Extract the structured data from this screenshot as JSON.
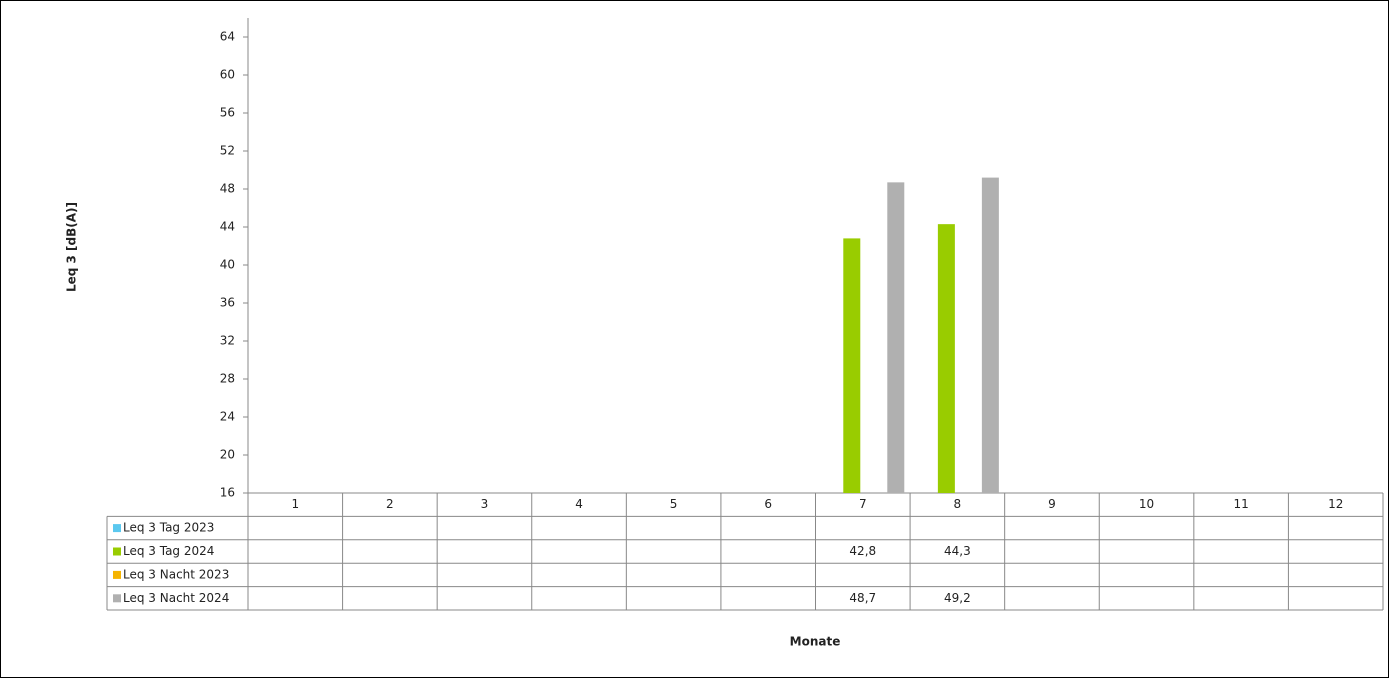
{
  "chart_data": {
    "type": "bar",
    "y_label": "Leq 3 [dB(A)]",
    "x_label": "Monate",
    "categories": [
      "1",
      "2",
      "3",
      "4",
      "5",
      "6",
      "7",
      "8",
      "9",
      "10",
      "11",
      "12"
    ],
    "series": [
      {
        "name": "Leq 3 Tag 2023",
        "color": "#5bc8ef",
        "values": [
          null,
          null,
          null,
          null,
          null,
          null,
          null,
          null,
          null,
          null,
          null,
          null
        ]
      },
      {
        "name": "Leq 3 Tag 2024",
        "color": "#99cc00",
        "values": [
          null,
          null,
          null,
          null,
          null,
          null,
          42.8,
          44.3,
          null,
          null,
          null,
          null
        ],
        "value_labels": [
          null,
          null,
          null,
          null,
          null,
          null,
          "42,8",
          "44,3",
          null,
          null,
          null,
          null
        ]
      },
      {
        "name": "Leq 3 Nacht 2023",
        "color": "#f5b400",
        "values": [
          null,
          null,
          null,
          null,
          null,
          null,
          null,
          null,
          null,
          null,
          null,
          null
        ]
      },
      {
        "name": "Leq 3 Nacht 2024",
        "color": "#b0b0b0",
        "values": [
          null,
          null,
          null,
          null,
          null,
          null,
          48.7,
          49.2,
          null,
          null,
          null,
          null
        ],
        "value_labels": [
          null,
          null,
          null,
          null,
          null,
          null,
          "48,7",
          "49,2",
          null,
          null,
          null,
          null
        ]
      }
    ],
    "ylim": [
      16,
      66
    ],
    "yticks": [
      16,
      20,
      24,
      28,
      32,
      36,
      40,
      44,
      48,
      52,
      56,
      60,
      64
    ]
  }
}
